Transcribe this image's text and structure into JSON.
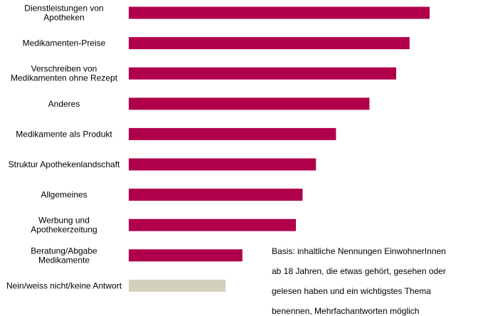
{
  "chart_data": {
    "type": "bar",
    "orientation": "horizontal",
    "categories": [
      [
        "Dienstleistungen von",
        "Apotheken"
      ],
      [
        "Medikamenten-Preise"
      ],
      [
        "Verschreiben von",
        "Medikamenten ohne Rezept"
      ],
      [
        "Anderes"
      ],
      [
        "Medikamente als Produkt"
      ],
      [
        "Struktur Apothekenlandschaft"
      ],
      [
        "Allgemeines"
      ],
      [
        "Werbung und",
        "Apothekerzeitung"
      ],
      [
        "Beratung/Abgabe",
        "Medikamente"
      ],
      [
        "Nein/weiss nicht/keine Antwort"
      ]
    ],
    "values": [
      45,
      42,
      40,
      36,
      31,
      28,
      26,
      25,
      17,
      14.5
    ],
    "xlim": [
      0,
      50
    ],
    "grid": false,
    "colors": {
      "bar": "#b0004c",
      "bar_neutral": "#d3d0bc"
    },
    "neutral_index": 9
  },
  "note": {
    "lines": [
      "Basis: inhaltliche Nennungen EinwohnerInnen",
      "ab 18 Jahren, die etwas gehört, gesehen oder",
      "gelesen haben und ein wichtigstes Thema",
      "benennen, Mehrfachantworten möglich"
    ]
  }
}
